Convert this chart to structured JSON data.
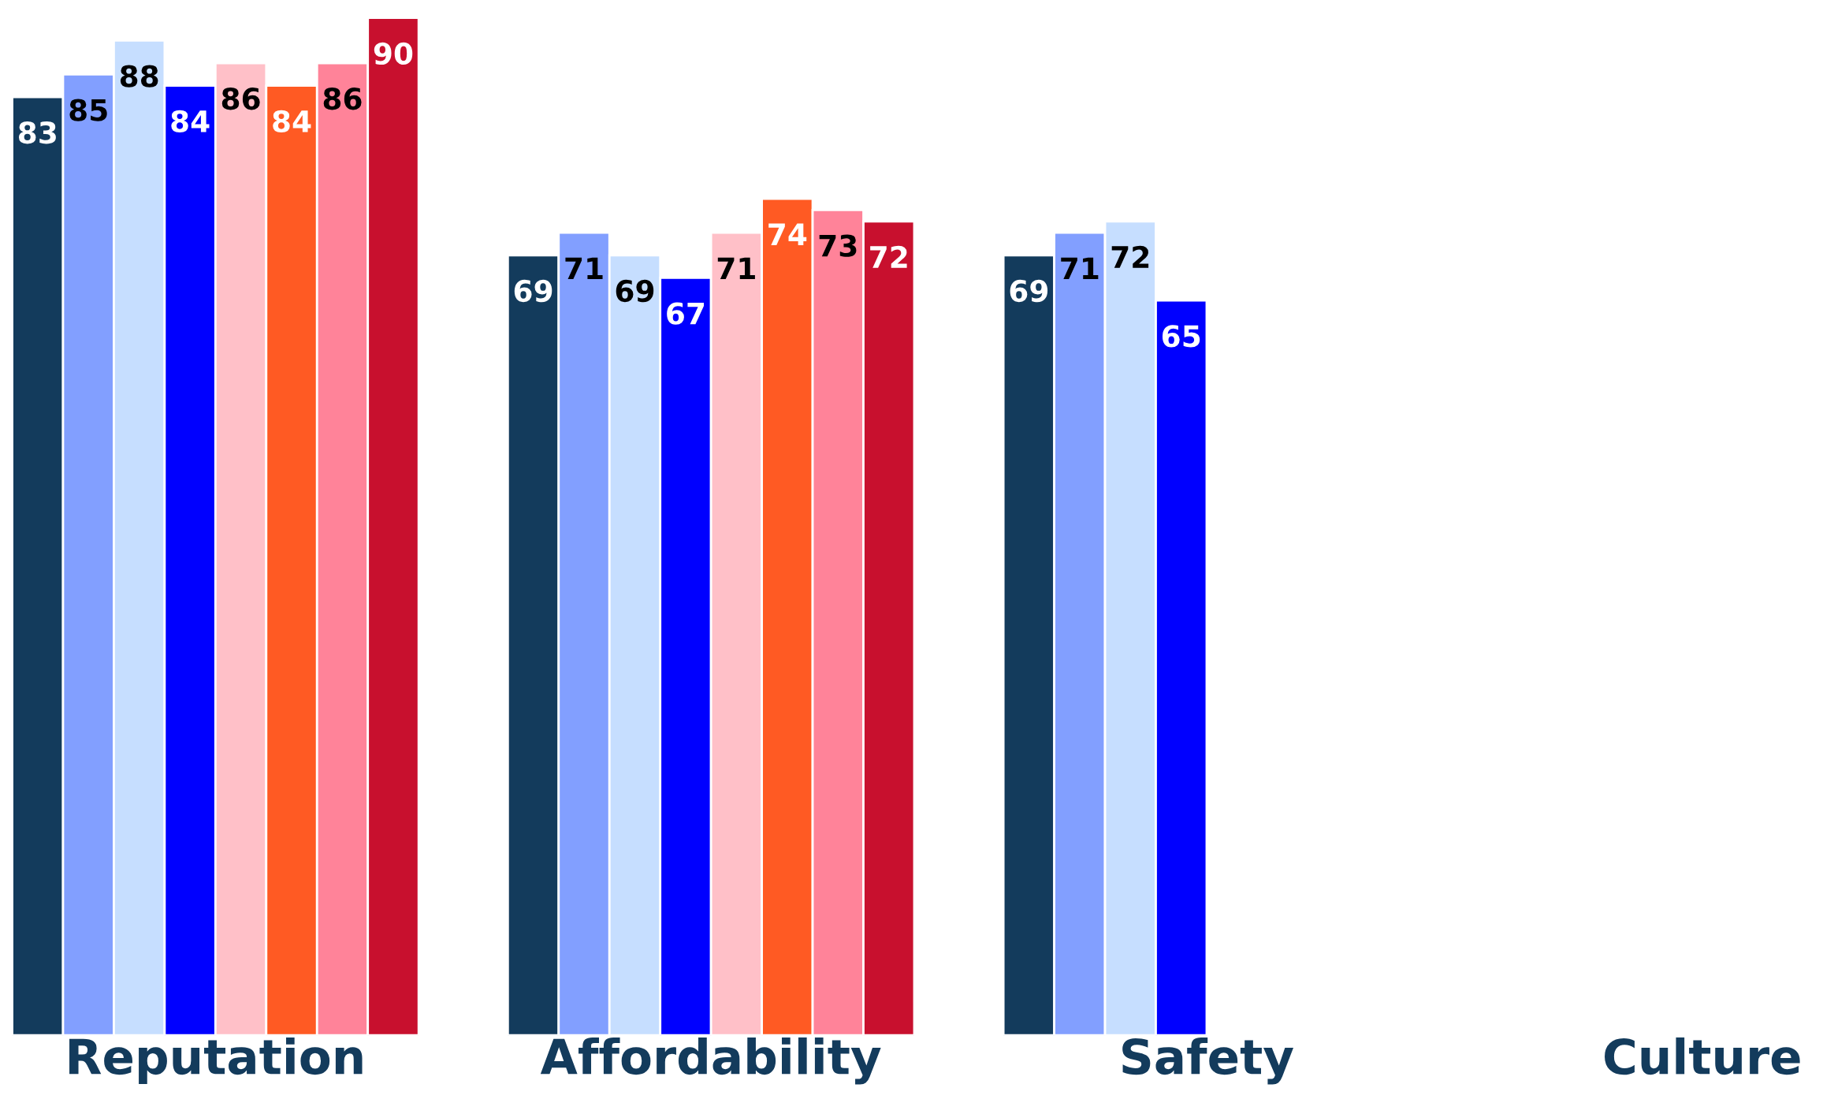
{
  "chart_data": {
    "type": "bar",
    "categories": [
      "Reputation",
      "Affordability",
      "Safety",
      "Culture"
    ],
    "series": [
      {
        "color": "#133b5c",
        "values": [
          83,
          69,
          69,
          null
        ]
      },
      {
        "color": "#829fff",
        "values": [
          85,
          71,
          71,
          null
        ]
      },
      {
        "color": "#c6deff",
        "values": [
          88,
          69,
          72,
          null
        ]
      },
      {
        "color": "#0000ff",
        "values": [
          84,
          67,
          65,
          null
        ]
      },
      {
        "color": "#ffc0c8",
        "values": [
          86,
          71,
          null,
          null
        ]
      },
      {
        "color": "#ff5a23",
        "values": [
          84,
          74,
          null,
          null
        ]
      },
      {
        "color": "#ff8399",
        "values": [
          86,
          73,
          null,
          null
        ]
      },
      {
        "color": "#c8102e",
        "values": [
          90,
          72,
          null,
          null
        ]
      }
    ],
    "data_labels": true,
    "grid": false,
    "legend": false
  }
}
